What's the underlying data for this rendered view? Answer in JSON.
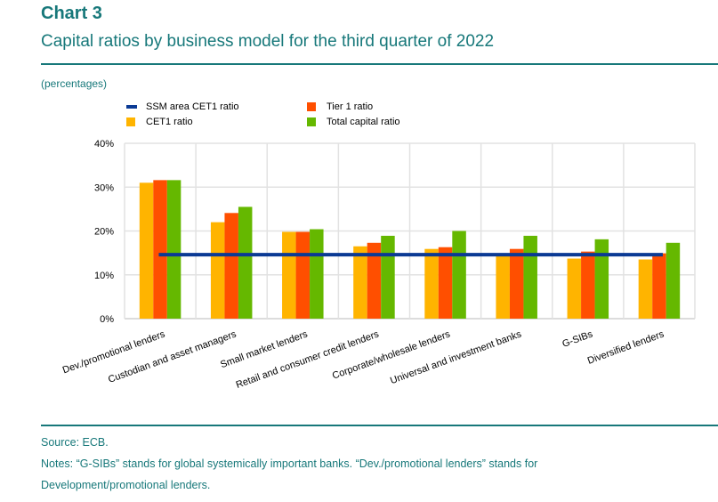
{
  "header": {
    "chart_number": "Chart 3",
    "title": "Capital ratios by business model for the third quarter of 2022",
    "units": "(percentages)"
  },
  "legend": [
    {
      "label": "SSM area CET1 ratio",
      "color": "#0b3a94",
      "kind": "line"
    },
    {
      "label": "Tier 1 ratio",
      "color": "#ff4f00",
      "kind": "box"
    },
    {
      "label": "CET1 ratio",
      "color": "#ffb400",
      "kind": "box"
    },
    {
      "label": "Total capital ratio",
      "color": "#65b800",
      "kind": "box"
    }
  ],
  "footer": {
    "source": "Source: ECB.",
    "notes_line1": "Notes: “G-SIBs” stands for global systemically important banks. “Dev./promotional lenders” stands for",
    "notes_line2": "Development/promotional lenders."
  },
  "chart_data": {
    "type": "bar",
    "title": "Capital ratios by business model for the third quarter of 2022",
    "xlabel": "",
    "ylabel": "(percentages)",
    "ylim": [
      0,
      40
    ],
    "yticks": [
      0,
      10,
      20,
      30,
      40
    ],
    "ytick_labels": [
      "0%",
      "10%",
      "20%",
      "30%",
      "40%"
    ],
    "grid": true,
    "legend_position": "top-left",
    "categories": [
      "Dev./promotional lenders",
      "Custodian and asset managers",
      "Small market lenders",
      "Retail and consumer credit lenders",
      "Corporate/wholesale lenders",
      "Universal and investment banks",
      "G-SIBs",
      "Diversified lenders"
    ],
    "series": [
      {
        "name": "CET1 ratio",
        "color": "#ffb400",
        "values": [
          31.0,
          22.0,
          19.8,
          16.5,
          15.9,
          14.5,
          13.7,
          13.5
        ]
      },
      {
        "name": "Tier 1 ratio",
        "color": "#ff4f00",
        "values": [
          31.6,
          24.1,
          19.8,
          17.3,
          16.3,
          15.9,
          15.3,
          14.9
        ]
      },
      {
        "name": "Total capital ratio",
        "color": "#65b800",
        "values": [
          31.6,
          25.5,
          20.4,
          18.9,
          20.0,
          18.9,
          18.1,
          17.3
        ]
      }
    ],
    "reference_line": {
      "name": "SSM area CET1 ratio",
      "color": "#0b3a94",
      "value": 14.6
    }
  }
}
